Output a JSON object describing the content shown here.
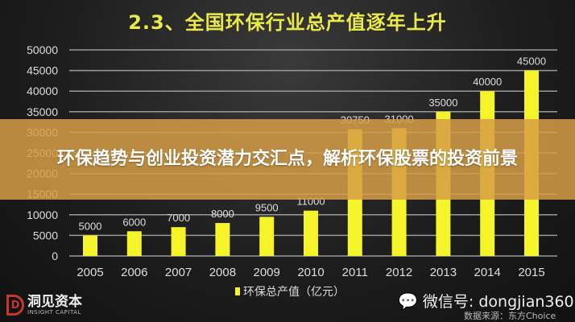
{
  "chart_data": {
    "type": "bar",
    "title": "2.3、全国环保行业总产值逐年上升",
    "categories": [
      "2005",
      "2006",
      "2007",
      "2008",
      "2009",
      "2010",
      "2011",
      "2012",
      "2013",
      "2014",
      "2015"
    ],
    "series": [
      {
        "name": "环保总产值（亿元）",
        "values": [
          5000,
          6000,
          7000,
          8000,
          9500,
          11000,
          30750,
          31000,
          35000,
          40000,
          45000
        ]
      }
    ],
    "data_labels": [
      "5000",
      "6000",
      "7000",
      "8000",
      "9500",
      "11000",
      "30750",
      "31000",
      "35000",
      "40000",
      "45000"
    ],
    "ylim": [
      0,
      50000
    ],
    "yticks": [
      "0",
      "5000",
      "10000",
      "15000",
      "20000",
      "25000",
      "30000",
      "35000",
      "40000",
      "45000",
      "50000"
    ],
    "grid": true,
    "legend": "bottom",
    "bar_color": "#f5f32a"
  },
  "banner": {
    "text": "环保趋势与创业投资潜力交汇点，解析环保股票的投资前景"
  },
  "footer": {
    "logo_name": "洞见资本",
    "logo_sub": "INSIGHT CAPITAL",
    "wechat": "微信号: dongjian360",
    "source": "数据来源：东方Choice"
  }
}
